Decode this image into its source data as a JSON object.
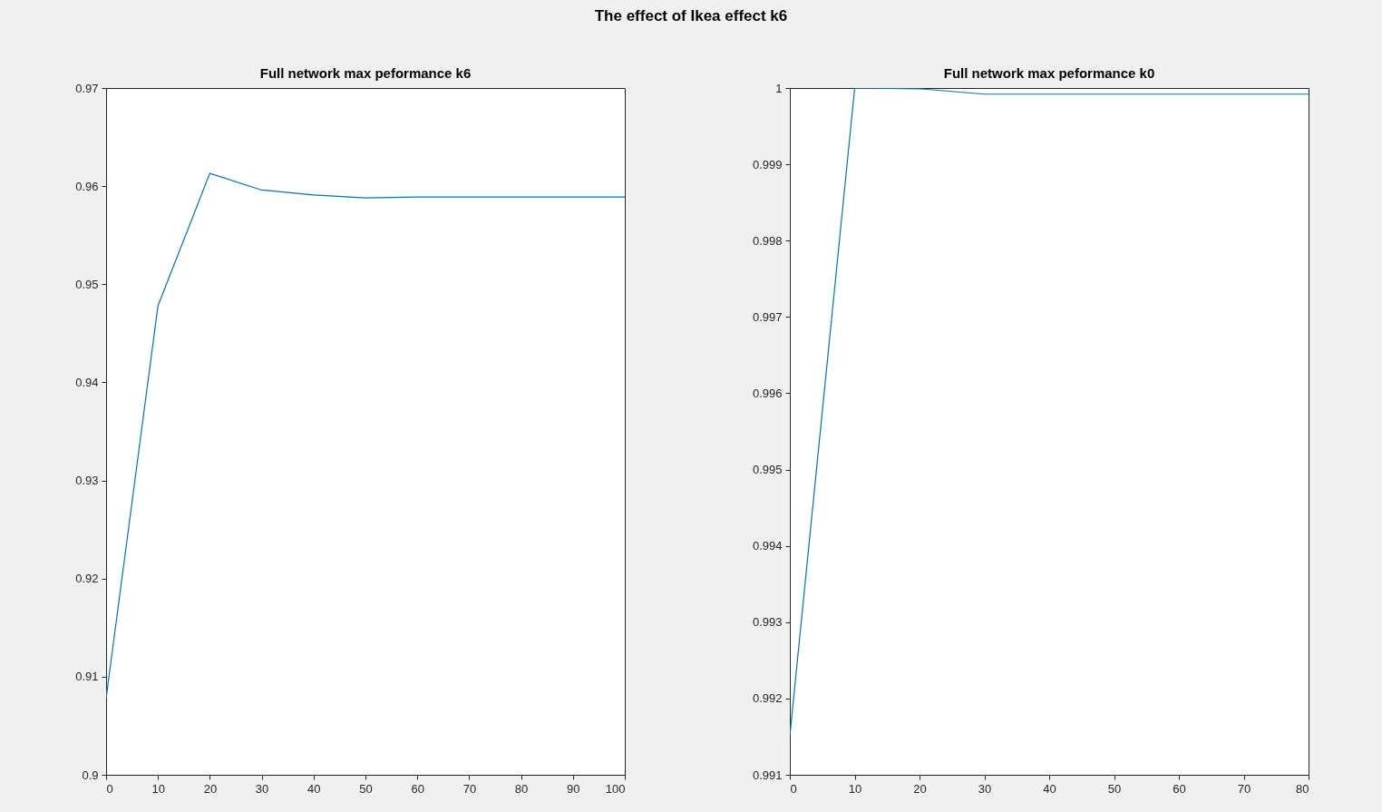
{
  "chart_data": [
    {
      "type": "other",
      "title": "The effect of Ikea effect k6"
    },
    {
      "type": "line",
      "title": "Full network max peformance k6",
      "x": [
        0,
        10,
        20,
        30,
        40,
        50,
        60,
        70,
        80,
        90,
        100
      ],
      "series": [
        {
          "color": "#0072bd",
          "values": [
            0.9078,
            0.9478,
            0.9613,
            0.9596,
            0.9591,
            0.9588,
            0.9589,
            0.9589,
            0.9589,
            0.9589,
            0.9589
          ]
        }
      ],
      "xlim": [
        0,
        100
      ],
      "xticks": [
        0,
        10,
        20,
        30,
        40,
        50,
        60,
        70,
        80,
        90,
        100
      ],
      "ylim": [
        0.9,
        0.97
      ],
      "yticks": [
        0.9,
        0.91,
        0.92,
        0.93,
        0.94,
        0.95,
        0.96,
        0.97
      ],
      "grid": false,
      "marker": "none",
      "line_style": "solid"
    },
    {
      "type": "line",
      "title": "Full network max peformance k0",
      "x": [
        0,
        10,
        20,
        30,
        40,
        50,
        60,
        70,
        80
      ],
      "series": [
        {
          "color": "#0072bd",
          "values": [
            0.99151,
            1,
            0.99999,
            0.99992,
            0.99992,
            0.99992,
            0.99992,
            0.99992,
            0.99992
          ]
        }
      ],
      "xlim": [
        0,
        80
      ],
      "xticks": [
        0,
        10,
        20,
        30,
        40,
        50,
        60,
        70,
        80
      ],
      "ylim": [
        0.991,
        1
      ],
      "yticks": [
        0.991,
        0.992,
        0.993,
        0.994,
        0.995,
        0.996,
        0.997,
        0.998,
        0.999,
        1
      ],
      "grid": false,
      "marker": "none",
      "line_style": "solid"
    }
  ]
}
